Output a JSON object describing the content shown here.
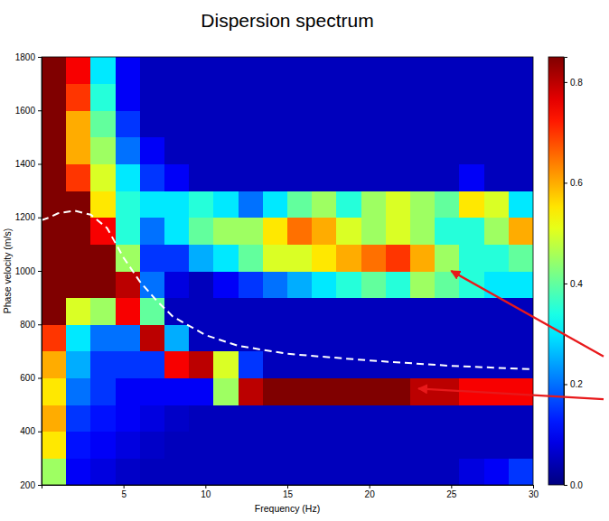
{
  "chart_data": {
    "type": "heatmap",
    "title": "Dispersion spectrum",
    "x_label": "Frequency (Hz)",
    "y_label": "Phase velocity (m/s)",
    "xlim": [
      0,
      30
    ],
    "ylim": [
      200,
      1800
    ],
    "xticks": [
      5,
      10,
      15,
      20,
      25,
      30
    ],
    "yticks": [
      200,
      400,
      600,
      800,
      1000,
      1200,
      1400,
      1600,
      1800
    ],
    "cells": {
      "x": [
        0,
        1.5,
        3,
        4.5,
        6,
        7.5,
        9,
        10.5,
        12,
        13.5,
        15,
        16.5,
        18,
        19.5,
        21,
        22.5,
        24,
        25.5,
        27,
        28.5,
        30
      ],
      "y": [
        200,
        300,
        400,
        500,
        600,
        700,
        800,
        900,
        1000,
        1100,
        1200,
        1300,
        1400,
        1500,
        1600,
        1700,
        1800
      ],
      "values": [
        [
          0.45,
          0.1,
          0.08,
          0.06,
          0.05,
          0.05,
          0.05,
          0.05,
          0.05,
          0.05,
          0.05,
          0.05,
          0.05,
          0.05,
          0.05,
          0.05,
          0.05,
          0.08,
          0.1,
          0.15
        ],
        [
          0.55,
          0.12,
          0.1,
          0.08,
          0.06,
          0.05,
          0.05,
          0.05,
          0.05,
          0.05,
          0.05,
          0.05,
          0.05,
          0.05,
          0.05,
          0.05,
          0.05,
          0.05,
          0.05,
          0.05
        ],
        [
          0.6,
          0.15,
          0.12,
          0.1,
          0.08,
          0.06,
          0.05,
          0.05,
          0.05,
          0.05,
          0.05,
          0.05,
          0.05,
          0.05,
          0.05,
          0.05,
          0.05,
          0.05,
          0.05,
          0.05
        ],
        [
          0.55,
          0.2,
          0.15,
          0.1,
          0.1,
          0.1,
          0.1,
          0.45,
          0.8,
          0.85,
          0.85,
          0.85,
          0.85,
          0.85,
          0.85,
          0.8,
          0.8,
          0.75,
          0.75,
          0.75
        ],
        [
          0.6,
          0.25,
          0.15,
          0.15,
          0.15,
          0.75,
          0.8,
          0.5,
          0.15,
          0.05,
          0.05,
          0.05,
          0.05,
          0.05,
          0.05,
          0.05,
          0.05,
          0.05,
          0.05,
          0.05
        ],
        [
          0.7,
          0.3,
          0.2,
          0.2,
          0.8,
          0.25,
          0.05,
          0.05,
          0.05,
          0.05,
          0.05,
          0.05,
          0.05,
          0.05,
          0.05,
          0.05,
          0.05,
          0.05,
          0.05,
          0.05
        ],
        [
          0.85,
          0.5,
          0.45,
          0.75,
          0.4,
          0.05,
          0.05,
          0.05,
          0.05,
          0.05,
          0.05,
          0.05,
          0.05,
          0.05,
          0.05,
          0.05,
          0.05,
          0.05,
          0.05,
          0.05
        ],
        [
          0.9,
          0.9,
          0.9,
          0.8,
          0.2,
          0.08,
          0.05,
          0.1,
          0.15,
          0.2,
          0.25,
          0.3,
          0.35,
          0.4,
          0.35,
          0.45,
          0.4,
          0.35,
          0.3,
          0.3
        ],
        [
          0.9,
          0.9,
          0.85,
          0.45,
          0.15,
          0.15,
          0.25,
          0.3,
          0.4,
          0.5,
          0.5,
          0.55,
          0.6,
          0.65,
          0.7,
          0.6,
          0.45,
          0.35,
          0.35,
          0.4
        ],
        [
          0.9,
          0.9,
          0.75,
          0.35,
          0.2,
          0.3,
          0.4,
          0.45,
          0.45,
          0.55,
          0.65,
          0.6,
          0.5,
          0.45,
          0.5,
          0.45,
          0.35,
          0.35,
          0.45,
          0.6
        ],
        [
          0.9,
          0.85,
          0.55,
          0.35,
          0.3,
          0.3,
          0.35,
          0.3,
          0.2,
          0.3,
          0.4,
          0.45,
          0.35,
          0.45,
          0.5,
          0.45,
          0.4,
          0.55,
          0.5,
          0.3
        ],
        [
          0.9,
          0.7,
          0.5,
          0.3,
          0.15,
          0.1,
          0.05,
          0.05,
          0.05,
          0.05,
          0.05,
          0.05,
          0.05,
          0.05,
          0.05,
          0.05,
          0.05,
          0.1,
          0.05,
          0.05
        ],
        [
          0.9,
          0.6,
          0.45,
          0.2,
          0.1,
          0.05,
          0.05,
          0.05,
          0.05,
          0.05,
          0.05,
          0.05,
          0.05,
          0.05,
          0.05,
          0.05,
          0.05,
          0.05,
          0.05,
          0.05
        ],
        [
          0.9,
          0.6,
          0.4,
          0.15,
          0.05,
          0.05,
          0.05,
          0.05,
          0.05,
          0.05,
          0.05,
          0.05,
          0.05,
          0.05,
          0.05,
          0.05,
          0.05,
          0.05,
          0.05,
          0.05
        ],
        [
          0.9,
          0.7,
          0.35,
          0.1,
          0.05,
          0.05,
          0.05,
          0.05,
          0.05,
          0.05,
          0.05,
          0.05,
          0.05,
          0.05,
          0.05,
          0.05,
          0.05,
          0.05,
          0.05,
          0.05
        ],
        [
          0.9,
          0.75,
          0.3,
          0.1,
          0.05,
          0.05,
          0.05,
          0.05,
          0.05,
          0.05,
          0.05,
          0.05,
          0.05,
          0.05,
          0.05,
          0.05,
          0.05,
          0.05,
          0.05,
          0.05
        ]
      ]
    },
    "colorbar": {
      "range": [
        0,
        0.85
      ],
      "ticks": [
        {
          "value": 0,
          "label": "0.0"
        },
        {
          "value": 0.2,
          "label": "0.2"
        },
        {
          "value": 0.4,
          "label": "0.4"
        },
        {
          "value": 0.6,
          "label": "0.6"
        },
        {
          "value": 0.8,
          "label": "0.8"
        }
      ]
    },
    "series": [
      {
        "type": "line",
        "color": "#ffffff",
        "line_style": "dashed",
        "x": [
          0,
          0.5,
          1,
          2,
          3,
          4,
          5,
          6,
          7,
          8,
          10,
          12,
          15,
          20,
          25,
          30
        ],
        "values": [
          1190,
          1200,
          1215,
          1225,
          1210,
          1160,
          1050,
          960,
          890,
          830,
          760,
          720,
          690,
          665,
          645,
          632
        ]
      }
    ],
    "arrows": [
      {
        "x": 25,
        "y": 1000,
        "color": "#e8191b"
      },
      {
        "x": 23,
        "y": 560,
        "color": "#e8191b"
      }
    ]
  }
}
